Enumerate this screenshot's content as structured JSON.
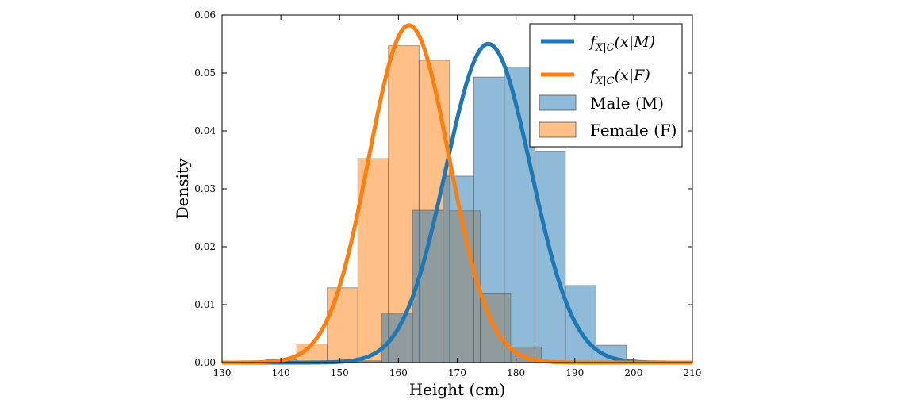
{
  "chart_data": {
    "type": "histogram+line",
    "title": "",
    "xlabel": "Height (cm)",
    "ylabel": "Density",
    "xlim": [
      130,
      210
    ],
    "ylim": [
      0,
      0.06
    ],
    "xticks": [
      130,
      140,
      150,
      160,
      170,
      180,
      190,
      200,
      210
    ],
    "yticks": [
      0.0,
      0.01,
      0.02,
      0.03,
      0.04,
      0.05,
      0.06
    ],
    "xtick_labels": [
      "130",
      "140",
      "150",
      "160",
      "170",
      "180",
      "190",
      "200",
      "210"
    ],
    "ytick_labels": [
      "0.00",
      "0.01",
      "0.02",
      "0.03",
      "0.04",
      "0.05",
      "0.06"
    ],
    "grid": false,
    "legend_position": "upper-right",
    "histograms": [
      {
        "name": "Male (M)",
        "color": "#1f77b4",
        "bins": [
          {
            "x0": 152.0,
            "x1": 157.2,
            "value": 0.0003
          },
          {
            "x0": 157.2,
            "x1": 162.4,
            "value": 0.0085
          },
          {
            "x0": 162.4,
            "x1": 167.6,
            "value": 0.0263
          },
          {
            "x0": 167.6,
            "x1": 172.8,
            "value": 0.0322
          },
          {
            "x0": 172.8,
            "x1": 178.0,
            "value": 0.0493
          },
          {
            "x0": 178.0,
            "x1": 183.2,
            "value": 0.051
          },
          {
            "x0": 183.2,
            "x1": 188.4,
            "value": 0.0365
          },
          {
            "x0": 188.4,
            "x1": 193.6,
            "value": 0.0133
          },
          {
            "x0": 193.6,
            "x1": 198.8,
            "value": 0.003
          }
        ]
      },
      {
        "name": "Female (F)",
        "color": "#ff7f0e",
        "bins": [
          {
            "x0": 137.5,
            "x1": 142.7,
            "value": 0.0005
          },
          {
            "x0": 142.7,
            "x1": 147.9,
            "value": 0.0032
          },
          {
            "x0": 147.9,
            "x1": 153.1,
            "value": 0.0129
          },
          {
            "x0": 153.1,
            "x1": 158.3,
            "value": 0.0352
          },
          {
            "x0": 158.3,
            "x1": 163.5,
            "value": 0.0547
          },
          {
            "x0": 163.5,
            "x1": 168.7,
            "value": 0.0522
          },
          {
            "x0": 168.7,
            "x1": 173.9,
            "value": 0.0262
          },
          {
            "x0": 173.9,
            "x1": 179.1,
            "value": 0.012
          },
          {
            "x0": 179.1,
            "x1": 184.3,
            "value": 0.0027
          }
        ]
      }
    ],
    "curves": [
      {
        "name": "f_{X|C}(x|M)",
        "color": "#1f77b4",
        "mean": 175.3,
        "std": 7.25
      },
      {
        "name": "f_{X|C}(x|F)",
        "color": "#ff7f0e",
        "mean": 161.8,
        "std": 6.85
      }
    ]
  },
  "legend": {
    "curve_m": {
      "base": "f",
      "sub": "X|C",
      "args": "(x|M)"
    },
    "curve_f": {
      "base": "f",
      "sub": "X|C",
      "args": "(x|F)"
    },
    "hist_m": "Male (M)",
    "hist_f": "Female (F)"
  }
}
